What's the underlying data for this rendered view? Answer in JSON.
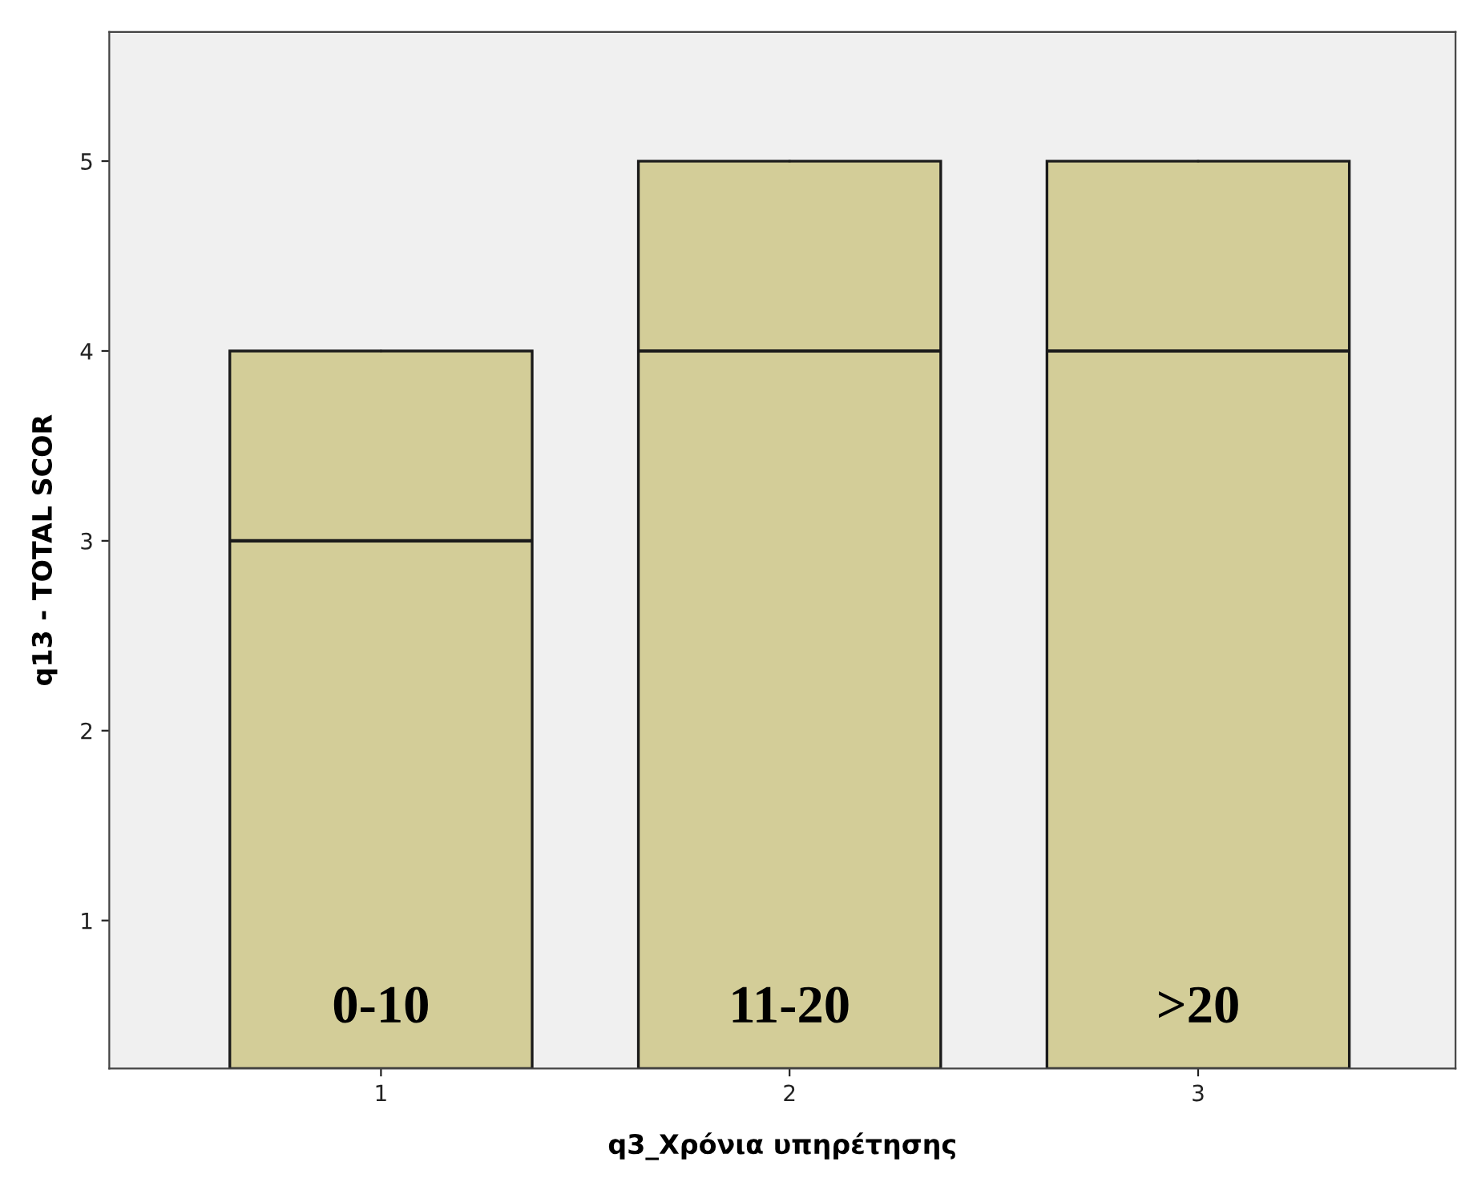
{
  "chart_data": {
    "type": "box",
    "xlabel": "q3_Χρόνια υπηρέτησης",
    "ylabel": "q13 - TOTAL SCOR",
    "categories": [
      "1",
      "2",
      "3"
    ],
    "boxes": [
      {
        "low": 0.22,
        "q1": 0.22,
        "median": 3,
        "q3": 4,
        "high": 4
      },
      {
        "low": 0.22,
        "q1": 0.22,
        "median": 4,
        "q3": 5,
        "high": 5
      },
      {
        "low": 0.22,
        "q1": 0.22,
        "median": 4,
        "q3": 5,
        "high": 5
      }
    ],
    "color": "#d3cd98",
    "ylim": [
      0.22,
      5.68
    ],
    "yticks": [
      1,
      2,
      3,
      4,
      5
    ],
    "grid": false,
    "annotations": [
      "0-10",
      "11-20",
      ">20"
    ]
  }
}
